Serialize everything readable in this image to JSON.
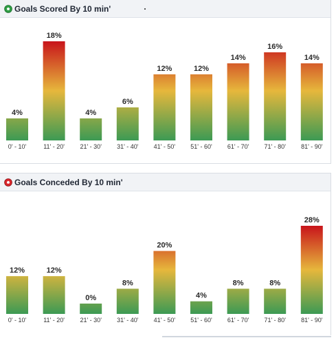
{
  "panels": {
    "scored": {
      "title": "Goals Scored By 10 min'",
      "icon": "green-soccer-ball-icon"
    },
    "conceded": {
      "title": "Goals Conceded By 10 min'",
      "icon": "red-soccer-ball-icon"
    }
  },
  "colors": {
    "gradient_top": "#c8141b",
    "gradient_mid": "#e6b73c",
    "gradient_bottom": "#3c9a54"
  },
  "chart_data": [
    {
      "type": "bar",
      "title": "Goals Scored By 10 min'",
      "categories": [
        "0' - 10'",
        "11' - 20'",
        "21' - 30'",
        "31' - 40'",
        "41' - 50'",
        "51' - 60'",
        "61' - 70'",
        "71' - 80'",
        "81' - 90'"
      ],
      "values": [
        4,
        18,
        4,
        6,
        12,
        12,
        14,
        16,
        14
      ],
      "labels": [
        "4%",
        "18%",
        "4%",
        "6%",
        "12%",
        "12%",
        "14%",
        "16%",
        "14%"
      ],
      "unit": "%",
      "ylim": [
        0,
        18
      ],
      "grid": false
    },
    {
      "type": "bar",
      "title": "Goals Conceded By 10 min'",
      "categories": [
        "0' - 10'",
        "11' - 20'",
        "21' - 30'",
        "31' - 40'",
        "41' - 50'",
        "51' - 60'",
        "61' - 70'",
        "71' - 80'",
        "81' - 90'"
      ],
      "values": [
        12,
        12,
        0,
        8,
        20,
        4,
        8,
        8,
        28
      ],
      "labels": [
        "12%",
        "12%",
        "0%",
        "8%",
        "20%",
        "4%",
        "8%",
        "8%",
        "28%"
      ],
      "unit": "%",
      "ylim": [
        0,
        28
      ],
      "grid": false
    }
  ]
}
